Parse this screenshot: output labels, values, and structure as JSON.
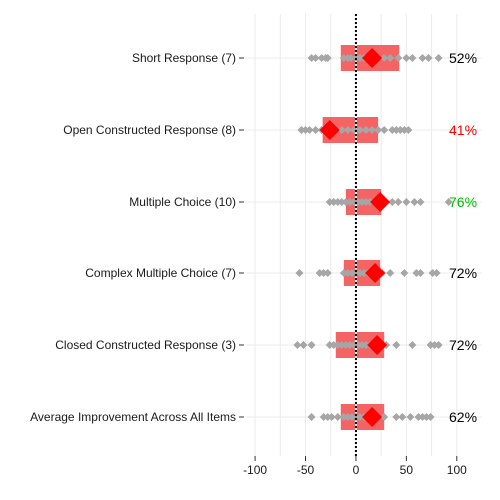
{
  "chart_data": {
    "type": "dot-range",
    "categories": [
      "Short Response (7)",
      "Open Constructed Response (8)",
      "Multiple Choice (10)",
      "Complex Multiple Choice (7)",
      "Closed Constructed Response (3)",
      "Average Improvement Across All Items"
    ],
    "percent_labels": [
      "52%",
      "41%",
      "76%",
      "72%",
      "72%",
      "62%"
    ],
    "percent_colors": [
      "#000000",
      "#ff0000",
      "#00bb00",
      "#000000",
      "#000000",
      "#000000"
    ],
    "boxes": [
      {
        "lo": -15,
        "hi": 43
      },
      {
        "lo": -33,
        "hi": 22
      },
      {
        "lo": -10,
        "hi": 25
      },
      {
        "lo": -12,
        "hi": 24
      },
      {
        "lo": -20,
        "hi": 28
      },
      {
        "lo": -15,
        "hi": 28
      }
    ],
    "means": [
      16,
      -26,
      24,
      19,
      21,
      16
    ],
    "points": [
      [
        -44,
        -40,
        -34,
        -30,
        -28,
        -12,
        -8,
        -5,
        0,
        4,
        8,
        12,
        18,
        22,
        28,
        34,
        42,
        50,
        56,
        66,
        72,
        82
      ],
      [
        -54,
        -50,
        -46,
        -40,
        -34,
        -26,
        -20,
        -14,
        -8,
        -2,
        4,
        10,
        16,
        22,
        28,
        36,
        40,
        44,
        48,
        52
      ],
      [
        -26,
        -22,
        -18,
        -14,
        -10,
        -6,
        -2,
        2,
        6,
        10,
        14,
        18,
        22,
        28,
        36,
        42,
        50,
        58,
        64,
        92
      ],
      [
        -56,
        -36,
        -32,
        -28,
        -12,
        -8,
        -4,
        0,
        4,
        8,
        12,
        16,
        20,
        26,
        34,
        48,
        60,
        64,
        76,
        80
      ],
      [
        -58,
        -52,
        -44,
        -26,
        -22,
        -18,
        -14,
        -10,
        -6,
        -2,
        2,
        6,
        10,
        14,
        18,
        30,
        40,
        56,
        74,
        78,
        82
      ],
      [
        -44,
        -32,
        -28,
        -24,
        -18,
        -12,
        -8,
        -4,
        0,
        4,
        8,
        12,
        18,
        22,
        28,
        40,
        46,
        54,
        62,
        66,
        70,
        74
      ]
    ],
    "x_ticks": [
      -100,
      -50,
      0,
      50,
      100
    ],
    "xlim": [
      -110,
      125
    ],
    "reference_line": 0,
    "xlabel": "",
    "ylabel": "",
    "title": "",
    "colors": {
      "box": "#f46464",
      "mean": "#ff0000",
      "point": "#a6a6a6",
      "reference": "#000000",
      "grid": "#ebebeb"
    }
  }
}
